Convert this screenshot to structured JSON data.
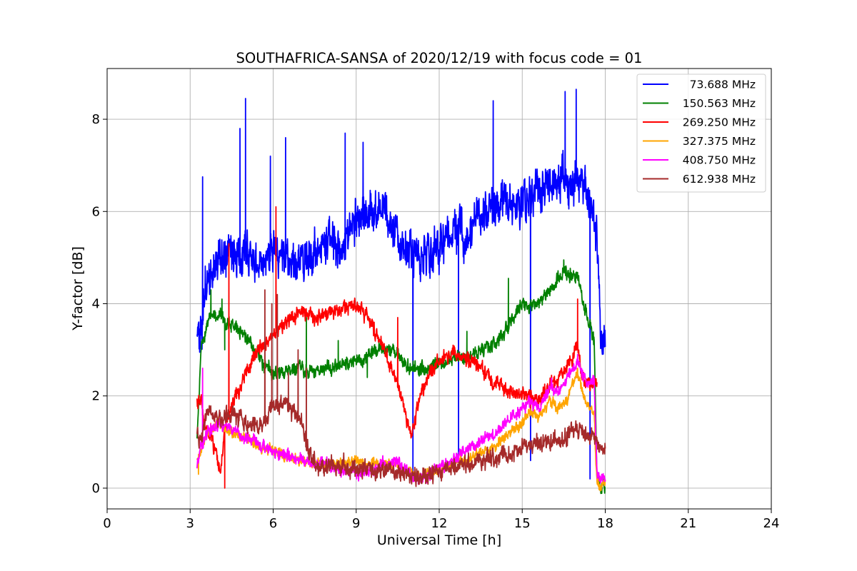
{
  "chart_data": {
    "type": "line",
    "title": "SOUTHAFRICA-SANSA of 2020/12/19 with focus code = 01",
    "xlabel": "Universal Time [h]",
    "ylabel": "Y-factor [dB]",
    "xlim": [
      0,
      24
    ],
    "ylim": [
      -0.45,
      9.1
    ],
    "xticks": [
      "0",
      "3",
      "6",
      "9",
      "12",
      "15",
      "18",
      "21",
      "24"
    ],
    "yticks": [
      "0",
      "2",
      "4",
      "6",
      "8"
    ],
    "grid": true,
    "legend_position": "top-right",
    "series": [
      {
        "name": "73.688 MHz",
        "color": "#0000ff",
        "x": [
          3.25,
          3.4,
          3.6,
          4.0,
          4.5,
          5.0,
          5.5,
          6.0,
          6.5,
          7.0,
          7.5,
          8.0,
          8.5,
          9.0,
          9.5,
          10.0,
          10.5,
          11.0,
          11.5,
          12.0,
          12.5,
          13.0,
          13.5,
          14.0,
          14.5,
          15.0,
          15.5,
          16.0,
          16.5,
          17.0,
          17.3,
          17.5,
          17.7,
          17.85,
          18.0
        ],
        "y": [
          3.3,
          3.2,
          4.6,
          4.9,
          5.0,
          5.2,
          4.8,
          5.1,
          4.9,
          5.0,
          5.1,
          5.4,
          5.2,
          5.8,
          6.0,
          6.0,
          5.5,
          5.0,
          5.0,
          5.2,
          5.6,
          5.4,
          5.9,
          6.1,
          6.2,
          6.3,
          6.5,
          6.6,
          6.7,
          6.6,
          6.4,
          6.0,
          5.5,
          3.2,
          3.1
        ],
        "noise": 0.35,
        "spikes": [
          [
            3.45,
            6.75
          ],
          [
            4.8,
            7.8
          ],
          [
            5.0,
            8.45
          ],
          [
            5.9,
            7.2
          ],
          [
            6.45,
            7.6
          ],
          [
            8.6,
            7.7
          ],
          [
            9.25,
            7.5
          ],
          [
            11.05,
            0.3
          ],
          [
            12.7,
            0.6
          ],
          [
            13.95,
            8.4
          ],
          [
            15.3,
            0.6
          ],
          [
            16.55,
            8.6
          ],
          [
            16.95,
            8.65
          ],
          [
            17.45,
            0.2
          ]
        ]
      },
      {
        "name": "150.563 MHz",
        "color": "#008000",
        "x": [
          3.25,
          3.4,
          3.6,
          3.8,
          4.2,
          4.6,
          5.0,
          5.3,
          5.6,
          6.0,
          6.5,
          7.0,
          7.5,
          8.0,
          8.5,
          9.0,
          9.5,
          10.0,
          10.5,
          11.0,
          11.5,
          12.0,
          12.5,
          13.0,
          13.5,
          14.0,
          14.5,
          15.0,
          15.5,
          16.0,
          16.5,
          17.0,
          17.3,
          17.6,
          17.7,
          17.8,
          18.0
        ],
        "y": [
          1.0,
          3.1,
          3.5,
          3.8,
          3.7,
          3.5,
          3.3,
          3.0,
          2.7,
          2.5,
          2.5,
          2.6,
          2.5,
          2.6,
          2.7,
          2.75,
          2.9,
          3.0,
          2.9,
          2.6,
          2.55,
          2.7,
          2.8,
          2.9,
          3.0,
          3.1,
          3.5,
          4.0,
          3.9,
          4.3,
          4.7,
          4.6,
          3.8,
          3.2,
          0.2,
          0.0,
          0.05
        ],
        "noise": 0.12,
        "spikes": [
          [
            3.75,
            4.3
          ],
          [
            4.15,
            4.1
          ],
          [
            4.25,
            3.0
          ],
          [
            7.2,
            3.7
          ],
          [
            8.35,
            3.2
          ],
          [
            9.4,
            2.4
          ],
          [
            13.0,
            3.4
          ],
          [
            14.5,
            4.55
          ],
          [
            16.5,
            4.95
          ]
        ]
      },
      {
        "name": "269.250 MHz",
        "color": "#ff0000",
        "x": [
          3.25,
          3.4,
          3.5,
          3.7,
          3.9,
          4.1,
          4.3,
          4.5,
          4.8,
          5.0,
          5.5,
          6.0,
          6.5,
          7.0,
          7.5,
          8.0,
          8.5,
          9.0,
          9.5,
          10.0,
          10.5,
          10.8,
          11.0,
          11.2,
          11.5,
          12.0,
          12.5,
          13.0,
          13.5,
          14.0,
          14.5,
          15.0,
          15.5,
          16.0,
          16.5,
          16.8,
          17.0,
          17.1,
          17.3,
          17.5,
          17.7
        ],
        "y": [
          1.8,
          1.9,
          1.5,
          1.2,
          0.8,
          0.4,
          1.5,
          1.8,
          2.2,
          2.5,
          3.0,
          3.3,
          3.6,
          3.8,
          3.7,
          3.8,
          3.9,
          4.0,
          3.6,
          3.0,
          2.3,
          1.6,
          1.1,
          1.7,
          2.3,
          2.8,
          2.9,
          2.8,
          2.6,
          2.3,
          2.1,
          2.05,
          1.9,
          2.2,
          2.5,
          2.8,
          3.2,
          2.6,
          2.3,
          2.35,
          2.3
        ],
        "noise": 0.12,
        "spikes": [
          [
            3.45,
            1.6
          ],
          [
            4.25,
            0.0
          ],
          [
            4.4,
            5.3
          ],
          [
            6.1,
            6.1
          ],
          [
            10.5,
            3.7
          ],
          [
            12.5,
            3.1
          ],
          [
            17.0,
            4.1
          ],
          [
            15.3,
            1.7
          ]
        ]
      },
      {
        "name": "327.375 MHz",
        "color": "#ffa500",
        "x": [
          3.25,
          3.4,
          3.6,
          4.0,
          4.5,
          5.0,
          5.5,
          6.0,
          6.5,
          7.0,
          7.5,
          8.0,
          8.5,
          9.0,
          9.5,
          10.0,
          10.5,
          11.0,
          11.5,
          12.0,
          12.5,
          13.0,
          13.5,
          14.0,
          14.5,
          15.0,
          15.3,
          15.6,
          16.0,
          16.3,
          16.6,
          17.0,
          17.3,
          17.6,
          17.7,
          17.8,
          18.0
        ],
        "y": [
          0.6,
          0.8,
          1.2,
          1.4,
          1.2,
          1.1,
          0.9,
          0.8,
          0.7,
          0.6,
          0.5,
          0.55,
          0.55,
          0.6,
          0.5,
          0.55,
          0.5,
          0.3,
          0.3,
          0.4,
          0.55,
          0.65,
          0.75,
          0.9,
          1.2,
          1.4,
          1.7,
          1.5,
          1.9,
          1.7,
          1.9,
          2.5,
          1.9,
          1.6,
          0.1,
          0.05,
          0.1
        ],
        "noise": 0.09,
        "spikes": [
          [
            3.3,
            0.3
          ],
          [
            17.0,
            2.6
          ]
        ]
      },
      {
        "name": "408.750 MHz",
        "color": "#ff00ff",
        "x": [
          3.25,
          3.4,
          3.6,
          4.0,
          4.5,
          5.0,
          5.5,
          6.0,
          6.5,
          7.0,
          7.5,
          8.0,
          8.5,
          9.0,
          9.5,
          10.0,
          10.5,
          11.0,
          11.5,
          12.0,
          12.5,
          13.0,
          13.5,
          14.0,
          14.5,
          15.0,
          15.3,
          15.6,
          16.0,
          16.3,
          16.6,
          17.0,
          17.3,
          17.6,
          17.7,
          17.8,
          18.0
        ],
        "y": [
          0.5,
          0.9,
          1.2,
          1.4,
          1.3,
          1.1,
          0.95,
          0.8,
          0.7,
          0.65,
          0.5,
          0.5,
          0.35,
          0.3,
          0.4,
          0.5,
          0.55,
          0.3,
          0.2,
          0.5,
          0.6,
          0.85,
          1.0,
          1.2,
          1.5,
          1.7,
          1.9,
          1.7,
          2.2,
          2.1,
          2.4,
          2.8,
          2.3,
          2.3,
          0.3,
          0.2,
          0.25
        ],
        "noise": 0.1,
        "spikes": [
          [
            3.45,
            2.6
          ],
          [
            17.0,
            2.9
          ]
        ]
      },
      {
        "name": "612.938 MHz",
        "color": "#a52a2a",
        "x": [
          3.25,
          3.4,
          3.6,
          4.0,
          4.5,
          5.0,
          5.5,
          5.8,
          6.0,
          6.5,
          7.0,
          7.3,
          7.5,
          8.0,
          8.5,
          9.0,
          9.5,
          10.0,
          10.5,
          11.0,
          11.5,
          12.0,
          12.5,
          13.0,
          13.5,
          14.0,
          14.5,
          15.0,
          15.5,
          16.0,
          16.5,
          17.0,
          17.5,
          17.7,
          17.8,
          18.0
        ],
        "y": [
          1.2,
          1.1,
          1.6,
          1.5,
          1.6,
          1.4,
          1.3,
          1.5,
          1.9,
          1.8,
          1.5,
          0.8,
          0.5,
          0.5,
          0.45,
          0.4,
          0.38,
          0.38,
          0.35,
          0.3,
          0.25,
          0.35,
          0.45,
          0.55,
          0.6,
          0.65,
          0.75,
          0.85,
          0.9,
          1.0,
          1.1,
          1.3,
          1.1,
          1.0,
          0.9,
          0.85
        ],
        "noise": 0.15,
        "spikes": [
          [
            5.7,
            4.3
          ],
          [
            5.95,
            4.0
          ],
          [
            6.15,
            4.2
          ],
          [
            6.55,
            2.5
          ],
          [
            6.9,
            3.0
          ],
          [
            7.2,
            2.6
          ]
        ]
      }
    ]
  }
}
